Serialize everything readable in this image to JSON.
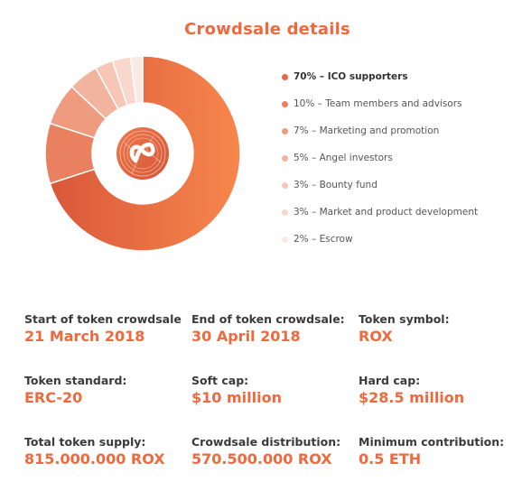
{
  "title": "Crowdsale details",
  "colors": {
    "accent": "#ee6a3e",
    "label_text": "#3a3a3a",
    "legend_text": "#555555"
  },
  "chart_data": {
    "type": "pie",
    "title": "Crowdsale details",
    "slices": [
      {
        "label": "70% – ICO supporters",
        "value": 70,
        "color": "#e8663f"
      },
      {
        "label": "10% – Team members and advisors",
        "value": 10,
        "color": "#e9805f"
      },
      {
        "label": "7% – Marketing and promotion",
        "value": 7,
        "color": "#ee9b80"
      },
      {
        "label": "5% – Angel investors",
        "value": 5,
        "color": "#f2b39f"
      },
      {
        "label": "3% – Bounty fund",
        "value": 3,
        "color": "#f6c6b7"
      },
      {
        "label": "3% – Market and product development",
        "value": 3,
        "color": "#f8d7cc"
      },
      {
        "label": "2% – Escrow",
        "value": 2,
        "color": "#fbe9e3"
      }
    ],
    "legend_position": "right"
  },
  "details": [
    {
      "label": "Start of token crowdsale",
      "value": "21 March 2018"
    },
    {
      "label": "End of token crowdsale:",
      "value": "30 April 2018"
    },
    {
      "label": "Token symbol:",
      "value": "ROX"
    },
    {
      "label": "Token standard:",
      "value": "ERC-20"
    },
    {
      "label": "Soft cap:",
      "value": "$10 million"
    },
    {
      "label": "Hard cap:",
      "value": "$28.5 million"
    },
    {
      "label": "Total token supply:",
      "value": "815.000.000 ROX"
    },
    {
      "label": "Crowdsale distribution:",
      "value": "570.500.000 ROX"
    },
    {
      "label": "Minimum contribution:",
      "value": "0.5 ETH"
    }
  ]
}
